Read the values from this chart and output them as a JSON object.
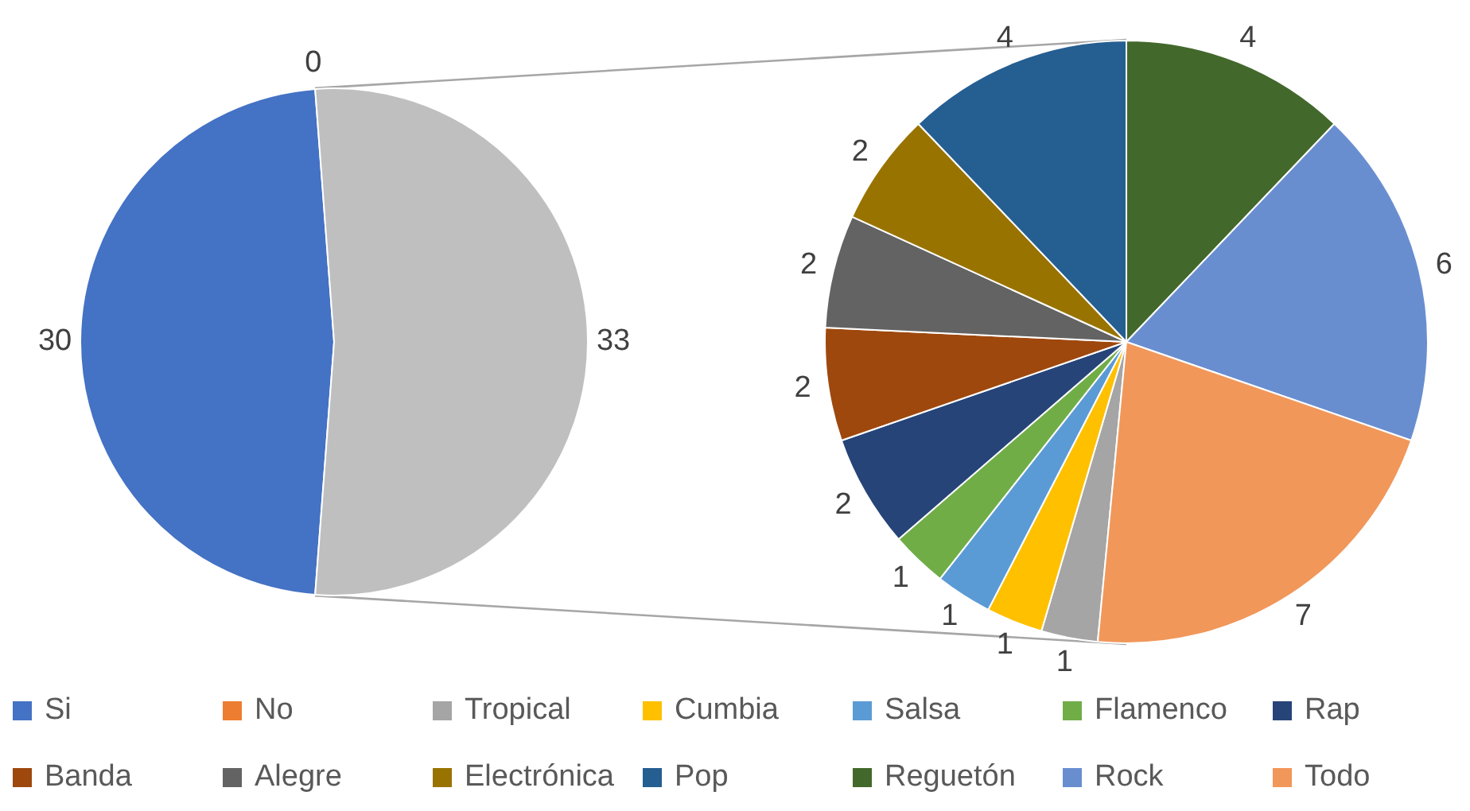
{
  "chart_data": [
    {
      "type": "pie",
      "categories": [
        "Si",
        "No",
        null
      ],
      "values": [
        30,
        0,
        33
      ],
      "value_labels": [
        "30",
        "0",
        "33"
      ],
      "colors": [
        "#4472c4",
        "#ed7d31",
        "#bfbfbf"
      ],
      "legend": "bottom"
    },
    {
      "type": "pie",
      "categories": [
        "Tropical",
        "Cumbia",
        "Salsa",
        "Flamenco",
        "Rap",
        "Banda",
        "Alegre",
        "Electrónica",
        "Pop",
        "Reguetón",
        "Rock",
        "Todo"
      ],
      "values": [
        1,
        1,
        1,
        1,
        2,
        2,
        2,
        2,
        4,
        4,
        6,
        7
      ],
      "colors": [
        "#a5a5a5",
        "#ffc000",
        "#5b9bd5",
        "#70ad47",
        "#264478",
        "#9e480e",
        "#636363",
        "#997300",
        "#255e91",
        "#43682b",
        "#698ed0",
        "#f1975a"
      ],
      "data_labels": true,
      "legend": "bottom"
    }
  ]
}
